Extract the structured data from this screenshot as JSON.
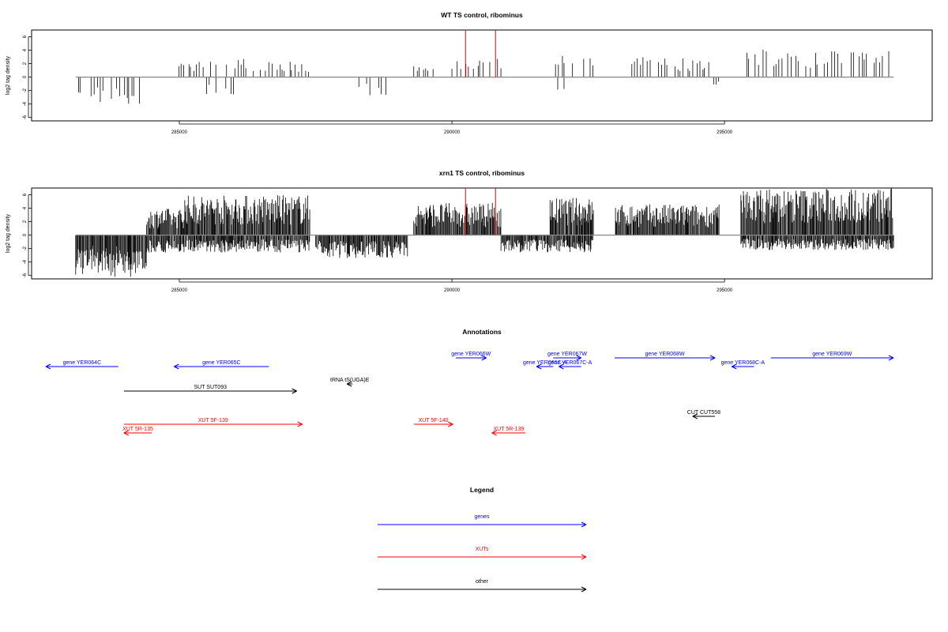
{
  "chart_data": [
    {
      "type": "bar",
      "title": "WT TS control, ribominus",
      "ylabel": "log2 tag density",
      "xlabel": "",
      "xlim": [
        282900,
        298200
      ],
      "ylim": [
        -6.5,
        7
      ],
      "xticks": [
        285000,
        290000,
        295000
      ],
      "yticks": [
        -6,
        -4,
        -2,
        0,
        2,
        4,
        6
      ],
      "grid": false,
      "plus_regions": [
        {
          "from": 284900,
          "to": 285400,
          "max": 2.4
        },
        {
          "from": 285400,
          "to": 286300,
          "max": 2.8
        },
        {
          "from": 286300,
          "to": 287400,
          "max": 2.4
        },
        {
          "from": 289300,
          "to": 289700,
          "max": 1.6
        },
        {
          "from": 290000,
          "to": 290900,
          "max": 2.8
        },
        {
          "from": 291900,
          "to": 292600,
          "max": 3.2
        },
        {
          "from": 293300,
          "to": 294800,
          "max": 3.0
        },
        {
          "from": 295300,
          "to": 298100,
          "max": 4.2
        }
      ],
      "minus_regions": [
        {
          "from": 283100,
          "to": 284300,
          "max": 4.0
        },
        {
          "from": 285500,
          "to": 286100,
          "max": 2.6
        },
        {
          "from": 288200,
          "to": 288800,
          "max": 3.2
        },
        {
          "from": 291900,
          "to": 292100,
          "max": 2.4
        },
        {
          "from": 294700,
          "to": 294900,
          "max": 1.8
        }
      ],
      "highlights": [
        {
          "x": 290250,
          "y": 7.0
        },
        {
          "x": 290800,
          "y": 7.0
        }
      ]
    },
    {
      "type": "bar",
      "title": "xrn1 TS control, ribominus",
      "ylabel": "log2 tag density",
      "xlabel": "",
      "xlim": [
        282900,
        298200
      ],
      "ylim": [
        -6.5,
        7
      ],
      "xticks": [
        285000,
        290000,
        295000
      ],
      "yticks": [
        -6,
        -4,
        -2,
        0,
        2,
        4,
        6
      ],
      "grid": false,
      "plus_regions": [
        {
          "from": 284400,
          "to": 285100,
          "max": 4.0
        },
        {
          "from": 285100,
          "to": 287400,
          "max": 6.0
        },
        {
          "from": 289300,
          "to": 290900,
          "max": 4.8
        },
        {
          "from": 291800,
          "to": 292600,
          "max": 5.6
        },
        {
          "from": 293000,
          "to": 294900,
          "max": 4.6
        },
        {
          "from": 295300,
          "to": 298100,
          "max": 7.0
        }
      ],
      "minus_regions": [
        {
          "from": 283100,
          "to": 284400,
          "max": 6.2
        },
        {
          "from": 284400,
          "to": 287400,
          "max": 2.6
        },
        {
          "from": 287500,
          "to": 289200,
          "max": 3.4
        },
        {
          "from": 290900,
          "to": 292600,
          "max": 2.6
        },
        {
          "from": 295300,
          "to": 298100,
          "max": 2.2
        }
      ],
      "highlights": [
        {
          "x": 290250,
          "y": 7.0
        },
        {
          "x": 290800,
          "y": 7.0
        }
      ]
    }
  ],
  "annotations": {
    "title": "Annotations",
    "colors": {
      "gene": "#0000ff",
      "xut": "#ff0000",
      "other": "#000000"
    },
    "items": [
      {
        "label": "gene YER064C",
        "kind": "gene",
        "from": 284200,
        "to": 282900,
        "row": 2
      },
      {
        "label": "gene YER065C",
        "kind": "gene",
        "from": 286900,
        "to": 285200,
        "row": 2
      },
      {
        "label": "gene YER066W",
        "kind": "gene",
        "from": 290250,
        "to": 290800,
        "row": 1
      },
      {
        "label": "gene YER067W",
        "kind": "gene",
        "from": 292000,
        "to": 292500,
        "row": 1
      },
      {
        "label": "gene YER066C-A",
        "kind": "gene",
        "from": 292000,
        "to": 291700,
        "row": 2
      },
      {
        "label": "gene YER067C-A",
        "kind": "gene",
        "from": 292500,
        "to": 292100,
        "row": 2
      },
      {
        "label": "gene YER068W",
        "kind": "gene",
        "from": 293100,
        "to": 294900,
        "row": 1
      },
      {
        "label": "gene YER068C-A",
        "kind": "gene",
        "from": 295600,
        "to": 295200,
        "row": 2
      },
      {
        "label": "gene YER069W",
        "kind": "gene",
        "from": 295900,
        "to": 298100,
        "row": 1
      },
      {
        "label": "SUT SUT093",
        "kind": "other",
        "from": 284300,
        "to": 287400,
        "row": 4
      },
      {
        "label": "tRNA tS(UGA)E",
        "kind": "other",
        "from": 288400,
        "to": 288300,
        "row": 3
      },
      {
        "label": "CUT CUT558",
        "kind": "other",
        "from": 294900,
        "to": 294500,
        "row": 6
      },
      {
        "label": "XUT 5F-139",
        "kind": "xut",
        "from": 284300,
        "to": 287500,
        "row": 7
      },
      {
        "label": "XUT 5R-135",
        "kind": "xut",
        "from": 284800,
        "to": 284300,
        "row": 8
      },
      {
        "label": "XUT 5F-140",
        "kind": "xut",
        "from": 289500,
        "to": 290200,
        "row": 7
      },
      {
        "label": "XUT 5R-139",
        "kind": "xut",
        "from": 291500,
        "to": 290900,
        "row": 8
      }
    ]
  },
  "legend": {
    "title": "Legend",
    "items": [
      {
        "label": "genes",
        "kind": "gene"
      },
      {
        "label": "XUTs",
        "kind": "xut"
      },
      {
        "label": "other",
        "kind": "other"
      }
    ]
  }
}
